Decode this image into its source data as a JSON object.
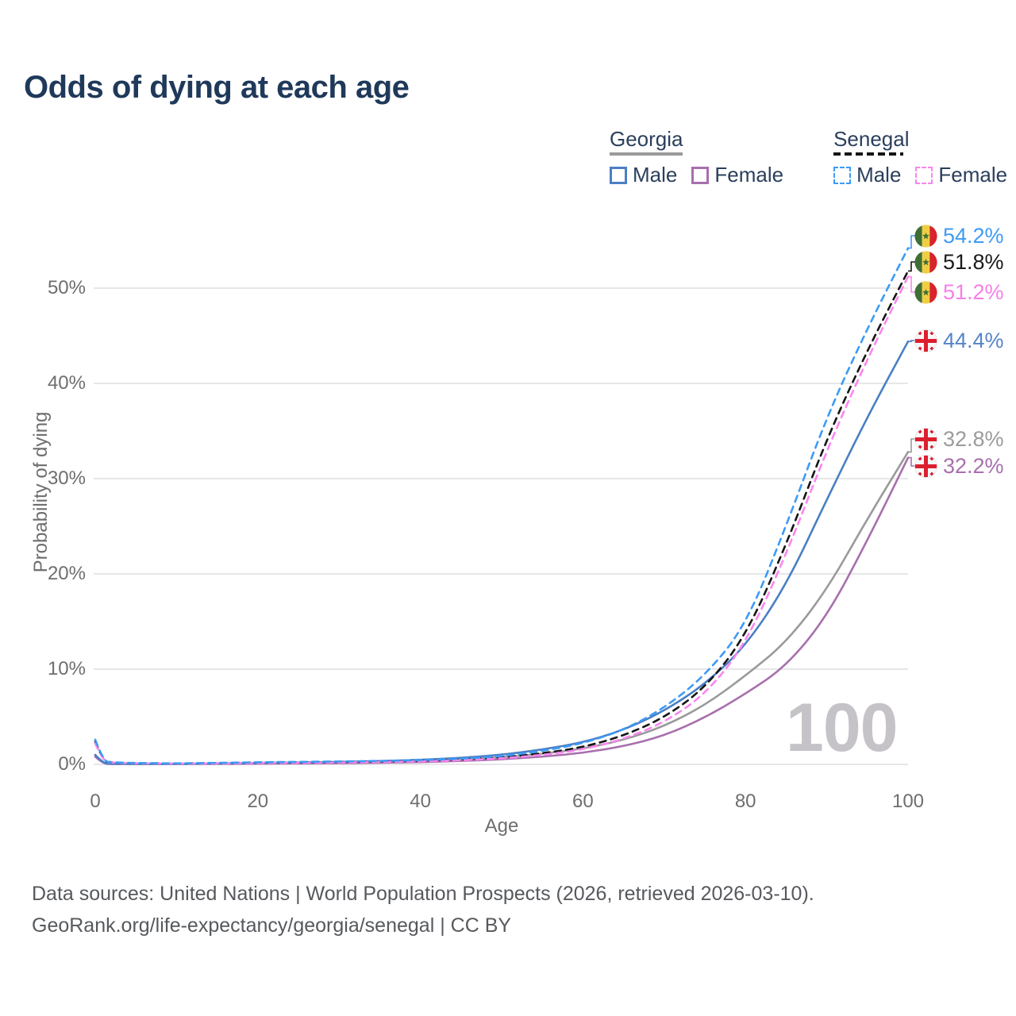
{
  "title": "Odds of dying at each age",
  "watermark_age": "100",
  "legend": {
    "georgia": {
      "label": "Georgia",
      "male_label": "Male",
      "female_label": "Female"
    },
    "senegal": {
      "label": "Senegal",
      "male_label": "Male",
      "female_label": "Female"
    }
  },
  "colors": {
    "title_text": "#1f395a",
    "legend_text": "#2b3f5c",
    "axis_text": "#6e6e6e",
    "gridline": "#e7e7e9",
    "watermark": "#c5c3c7",
    "footer_text": "#56595d",
    "georgia_underline": "#9a9a9a",
    "senegal_underline": "#151515"
  },
  "chart_data": {
    "type": "line",
    "title": "Odds of dying at each age",
    "xlabel": "Age",
    "ylabel": "Probability of dying",
    "xlim": [
      0,
      100
    ],
    "ylim_pct": [
      0,
      57
    ],
    "grid": "horizontal-only",
    "legend_position": "top-right",
    "x_ticks": [
      {
        "label": "0",
        "value": 0
      },
      {
        "label": "20",
        "value": 20
      },
      {
        "label": "40",
        "value": 40
      },
      {
        "label": "60",
        "value": 60
      },
      {
        "label": "80",
        "value": 80
      },
      {
        "label": "100",
        "value": 100
      }
    ],
    "y_ticks": [
      {
        "label": "0%",
        "value": 0
      },
      {
        "label": "10%",
        "value": 10
      },
      {
        "label": "20%",
        "value": 20
      },
      {
        "label": "30%",
        "value": 30
      },
      {
        "label": "40%",
        "value": 40
      },
      {
        "label": "50%",
        "value": 50
      }
    ],
    "ages": [
      0,
      1,
      2,
      5,
      10,
      15,
      20,
      25,
      30,
      35,
      40,
      45,
      50,
      55,
      60,
      65,
      70,
      75,
      80,
      85,
      90,
      95,
      100
    ],
    "series": [
      {
        "id": "georgia_both",
        "name": "Georgia (both sexes)",
        "country": "georgia",
        "style": "solid",
        "color": "#9a9a9a",
        "values_pct": [
          0.9,
          0.08,
          0.05,
          0.04,
          0.04,
          0.07,
          0.11,
          0.14,
          0.18,
          0.24,
          0.34,
          0.5,
          0.74,
          1.1,
          1.65,
          2.55,
          4.0,
          6.2,
          9.3,
          12.8,
          18.3,
          25.8,
          32.8
        ],
        "end_label": "32.8%",
        "end_label_color": "#9b9b9b"
      },
      {
        "id": "georgia_female",
        "name": "Georgia Female",
        "country": "georgia",
        "style": "solid",
        "color": "#a86fad",
        "values_pct": [
          0.8,
          0.07,
          0.05,
          0.04,
          0.03,
          0.05,
          0.07,
          0.09,
          0.12,
          0.17,
          0.24,
          0.36,
          0.53,
          0.8,
          1.2,
          1.9,
          3.0,
          4.9,
          7.4,
          10.3,
          15.5,
          23.5,
          32.2
        ],
        "end_label": "32.2%",
        "end_label_color": "#a86fad"
      },
      {
        "id": "georgia_male",
        "name": "Georgia Male",
        "country": "georgia",
        "style": "solid",
        "color": "#4b7fc4",
        "values_pct": [
          1.0,
          0.09,
          0.06,
          0.05,
          0.05,
          0.09,
          0.15,
          0.19,
          0.26,
          0.34,
          0.47,
          0.68,
          1.0,
          1.55,
          2.3,
          3.6,
          5.6,
          8.4,
          12.4,
          18.8,
          27.8,
          36.5,
          44.4
        ],
        "end_label": "44.4%",
        "end_label_color": "#5585c9"
      },
      {
        "id": "senegal_both",
        "name": "Senegal (both sexes)",
        "country": "senegal",
        "style": "dashed",
        "color": "#161616",
        "values_pct": [
          2.4,
          0.32,
          0.2,
          0.12,
          0.09,
          0.13,
          0.18,
          0.21,
          0.25,
          0.3,
          0.37,
          0.5,
          0.72,
          1.15,
          1.8,
          3.0,
          4.9,
          8.0,
          13.4,
          23.0,
          34.2,
          43.5,
          51.8
        ],
        "end_label": "51.8%",
        "end_label_color": "#1a1a1a"
      },
      {
        "id": "senegal_female",
        "name": "Senegal Female",
        "country": "senegal",
        "style": "dashed",
        "color": "#fb85f0",
        "values_pct": [
          2.2,
          0.3,
          0.19,
          0.11,
          0.08,
          0.11,
          0.14,
          0.17,
          0.2,
          0.25,
          0.31,
          0.43,
          0.62,
          0.98,
          1.55,
          2.65,
          4.4,
          7.3,
          12.6,
          22.0,
          33.0,
          42.6,
          51.2
        ],
        "end_label": "51.2%",
        "end_label_color": "#f77fe8"
      },
      {
        "id": "senegal_male",
        "name": "Senegal Male",
        "country": "senegal",
        "style": "dashed",
        "color": "#3d9bf5",
        "values_pct": [
          2.6,
          0.35,
          0.22,
          0.13,
          0.1,
          0.16,
          0.22,
          0.26,
          0.3,
          0.36,
          0.44,
          0.6,
          0.85,
          1.4,
          2.2,
          3.6,
          5.9,
          9.3,
          14.5,
          25.0,
          36.5,
          45.8,
          54.2
        ],
        "end_label": "54.2%",
        "end_label_color": "#3d9bf5"
      }
    ]
  },
  "footer": {
    "line1": "Data sources: United Nations | World Population Prospects (2026, retrieved 2026-03-10).",
    "line2": "GeoRank.org/life-expectancy/georgia/senegal | CC BY"
  }
}
